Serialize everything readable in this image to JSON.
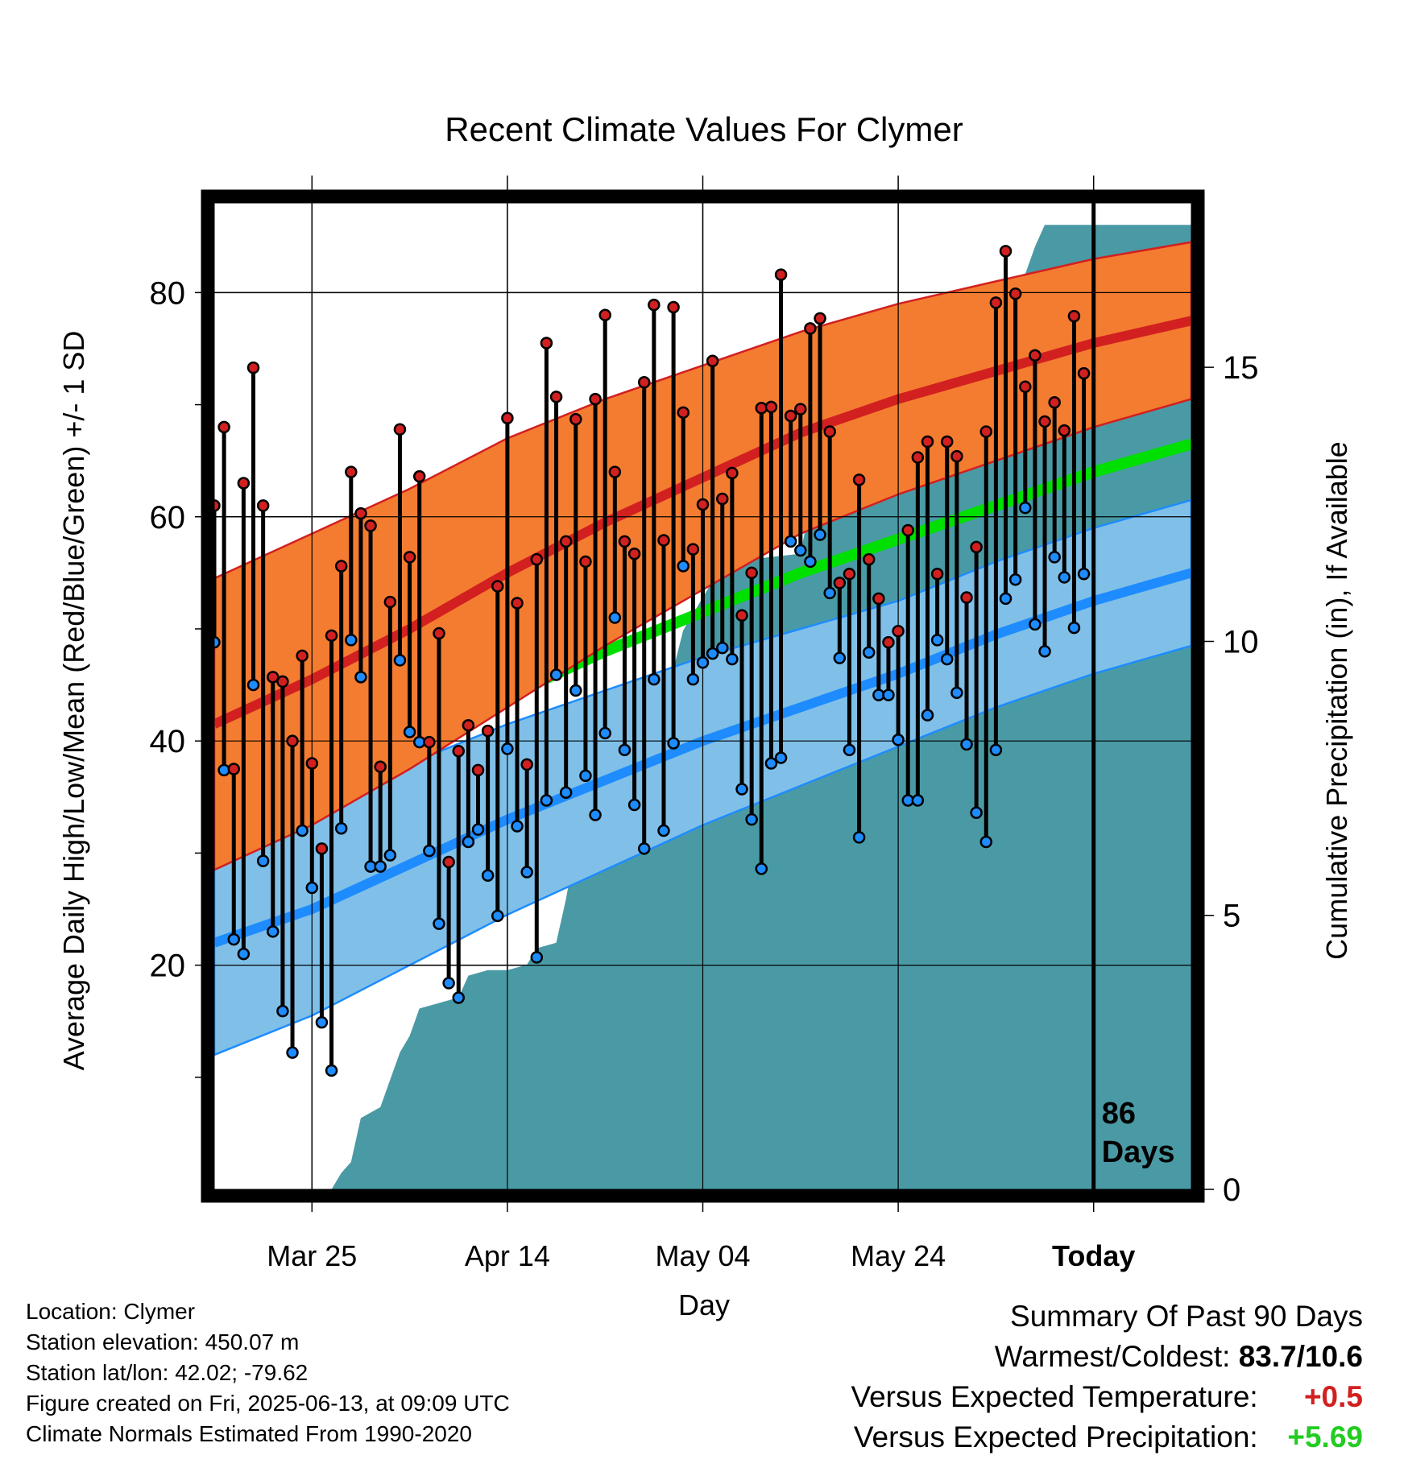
{
  "chart_data": {
    "type": "line",
    "title": "Recent Climate Values For Clymer",
    "xlabel": "Day",
    "ylabel": "Average Daily High/Low/Mean (Red/Blue/Green) +/- 1 SD",
    "y2label": "Cumulative Precipitation (in), If Available",
    "ylim": [
      0,
      88
    ],
    "y2lim": [
      0,
      18
    ],
    "yticks": [
      20,
      40,
      60,
      80
    ],
    "y2ticks": [
      0,
      5,
      10,
      15
    ],
    "x_tick_labels": [
      "Mar 25",
      "Apr 14",
      "May 04",
      "May 24",
      "Today"
    ],
    "x_tick_days": [
      10,
      30,
      50,
      70,
      90
    ],
    "x_range_days": [
      0,
      100
    ],
    "today_day": 90,
    "today_label": "86 Days",
    "grid": true,
    "colors": {
      "high_band": "#f47c30",
      "high_mean": "#d22020",
      "low_band": "#80c0e8",
      "low_mean": "#1e8cff",
      "mean_line": "#00e000",
      "precip": "#4a9aa5",
      "high_marker": "#d22020",
      "low_marker": "#1e8cff"
    },
    "normals": {
      "days": [
        0,
        10,
        20,
        30,
        40,
        50,
        60,
        70,
        80,
        90,
        100
      ],
      "high_mean": [
        41.5,
        45.5,
        50,
        55,
        59.5,
        63.5,
        67.5,
        70.5,
        73,
        75.5,
        77.5
      ],
      "high_sd": [
        13,
        13,
        12.5,
        12,
        11,
        10,
        9,
        8.5,
        8,
        7.5,
        7
      ],
      "low_mean": [
        22,
        25,
        29,
        33,
        36.5,
        40,
        43,
        46,
        49.5,
        52.5,
        55
      ],
      "low_sd": [
        10,
        9.5,
        9,
        8.5,
        8,
        7.5,
        7,
        6.5,
        6.5,
        6.5,
        6.5
      ],
      "mean": [
        31.5,
        35,
        40,
        44,
        48,
        51.5,
        55,
        58,
        61,
        64,
        66.5
      ]
    },
    "series": [
      {
        "name": "High",
        "values": [
          61,
          68,
          37.5,
          63,
          73.3,
          61,
          45.7,
          45.3,
          40,
          47.6,
          38,
          30.4,
          49.4,
          55.6,
          64,
          60.3,
          59.2,
          37.7,
          52.4,
          67.8,
          56.4,
          63.6,
          39.9,
          49.6,
          29.2,
          39.1,
          41.4,
          37.4,
          40.9,
          53.8,
          68.8,
          52.3,
          37.9,
          56.2,
          75.5,
          70.7,
          57.8,
          68.7,
          56,
          70.5,
          78,
          64,
          57.8,
          56.7,
          72,
          78.9,
          57.9,
          78.7,
          69.3,
          57.1,
          61.1,
          73.9,
          61.6,
          63.9,
          51.2,
          55,
          69.7,
          69.8,
          81.6,
          69,
          69.6,
          76.8,
          77.7,
          67.6,
          54.1,
          54.9,
          63.3,
          56.2,
          52.7,
          48.8,
          49.8,
          58.8,
          65.3,
          66.7,
          54.9,
          66.7,
          65.4,
          52.8,
          57.3,
          67.6,
          79.1,
          83.7,
          79.9,
          71.6,
          74.4,
          68.5,
          70.2,
          67.7,
          77.9,
          72.8
        ]
      },
      {
        "name": "Low",
        "values": [
          48.8,
          37.4,
          22.3,
          21,
          45,
          29.3,
          23,
          15.9,
          12.2,
          32,
          26.9,
          14.9,
          10.6,
          32.2,
          49,
          45.7,
          28.8,
          28.8,
          29.8,
          47.2,
          40.8,
          39.9,
          30.2,
          23.7,
          18.4,
          17.1,
          31,
          32.1,
          28,
          24.4,
          39.3,
          32.4,
          28.3,
          20.7,
          34.7,
          45.9,
          35.4,
          44.5,
          36.9,
          33.4,
          40.7,
          51,
          39.2,
          34.3,
          30.4,
          45.5,
          32,
          39.8,
          55.6,
          45.5,
          47,
          47.8,
          48.3,
          47.3,
          35.7,
          33,
          28.6,
          38,
          38.5,
          57.8,
          57,
          56,
          58.4,
          53.2,
          47.4,
          39.2,
          31.4,
          47.9,
          44.1,
          44.1,
          40.1,
          34.7,
          34.7,
          42.3,
          49,
          47.3,
          44.3,
          39.7,
          33.6,
          31,
          39.2,
          52.7,
          54.4,
          60.8,
          50.4,
          48,
          56.4,
          54.6,
          50.1,
          54.9
        ]
      },
      {
        "name": "Cumulative Precipitation",
        "days": [
          0,
          12,
          13,
          14,
          15,
          17,
          19,
          20,
          21,
          23,
          25,
          26,
          28,
          30,
          32,
          33,
          35,
          36,
          37,
          39,
          40,
          41,
          42,
          43,
          45,
          46,
          47,
          48,
          49,
          50,
          51,
          52,
          55,
          60,
          61,
          62,
          64,
          66,
          67,
          68,
          69,
          70,
          72,
          74,
          75,
          77,
          79,
          80,
          82,
          83,
          84,
          85,
          86,
          100
        ],
        "values": [
          0,
          0,
          0.3,
          0.5,
          1.3,
          1.5,
          2.5,
          2.8,
          3.3,
          3.4,
          3.5,
          3.9,
          4,
          4,
          4.1,
          4.4,
          4.5,
          5.3,
          6.3,
          6.8,
          7.5,
          8,
          8.1,
          8.1,
          8.3,
          8.9,
          9.5,
          10.2,
          10.5,
          10.8,
          11.1,
          11.3,
          11.5,
          11.6,
          12.5,
          13.1,
          13.4,
          14.6,
          15,
          15.2,
          15.3,
          15.4,
          15.5,
          15.6,
          15.8,
          16.1,
          16.2,
          16.4,
          16.6,
          16.7,
          17.2,
          17.6,
          17.6,
          17.6
        ]
      }
    ]
  },
  "footer": {
    "location": "Location: Clymer",
    "elevation": "Station elevation: 450.07 m",
    "latlon": "Station lat/lon: 42.02; -79.62",
    "created": "Figure created on Fri, 2025-06-13, at 09:09 UTC",
    "normals": "Climate Normals Estimated From 1990-2020"
  },
  "summary": {
    "heading": "Summary Of Past 90 Days",
    "warm_cold_label": "Warmest/Coldest:",
    "warm_cold_value": "83.7/10.6",
    "temp_label": "Versus Expected Temperature:",
    "temp_value": "+0.5",
    "temp_color": "#d22020",
    "precip_label": "Versus Expected Precipitation:",
    "precip_value": "+5.69",
    "precip_color": "#22cc22"
  }
}
